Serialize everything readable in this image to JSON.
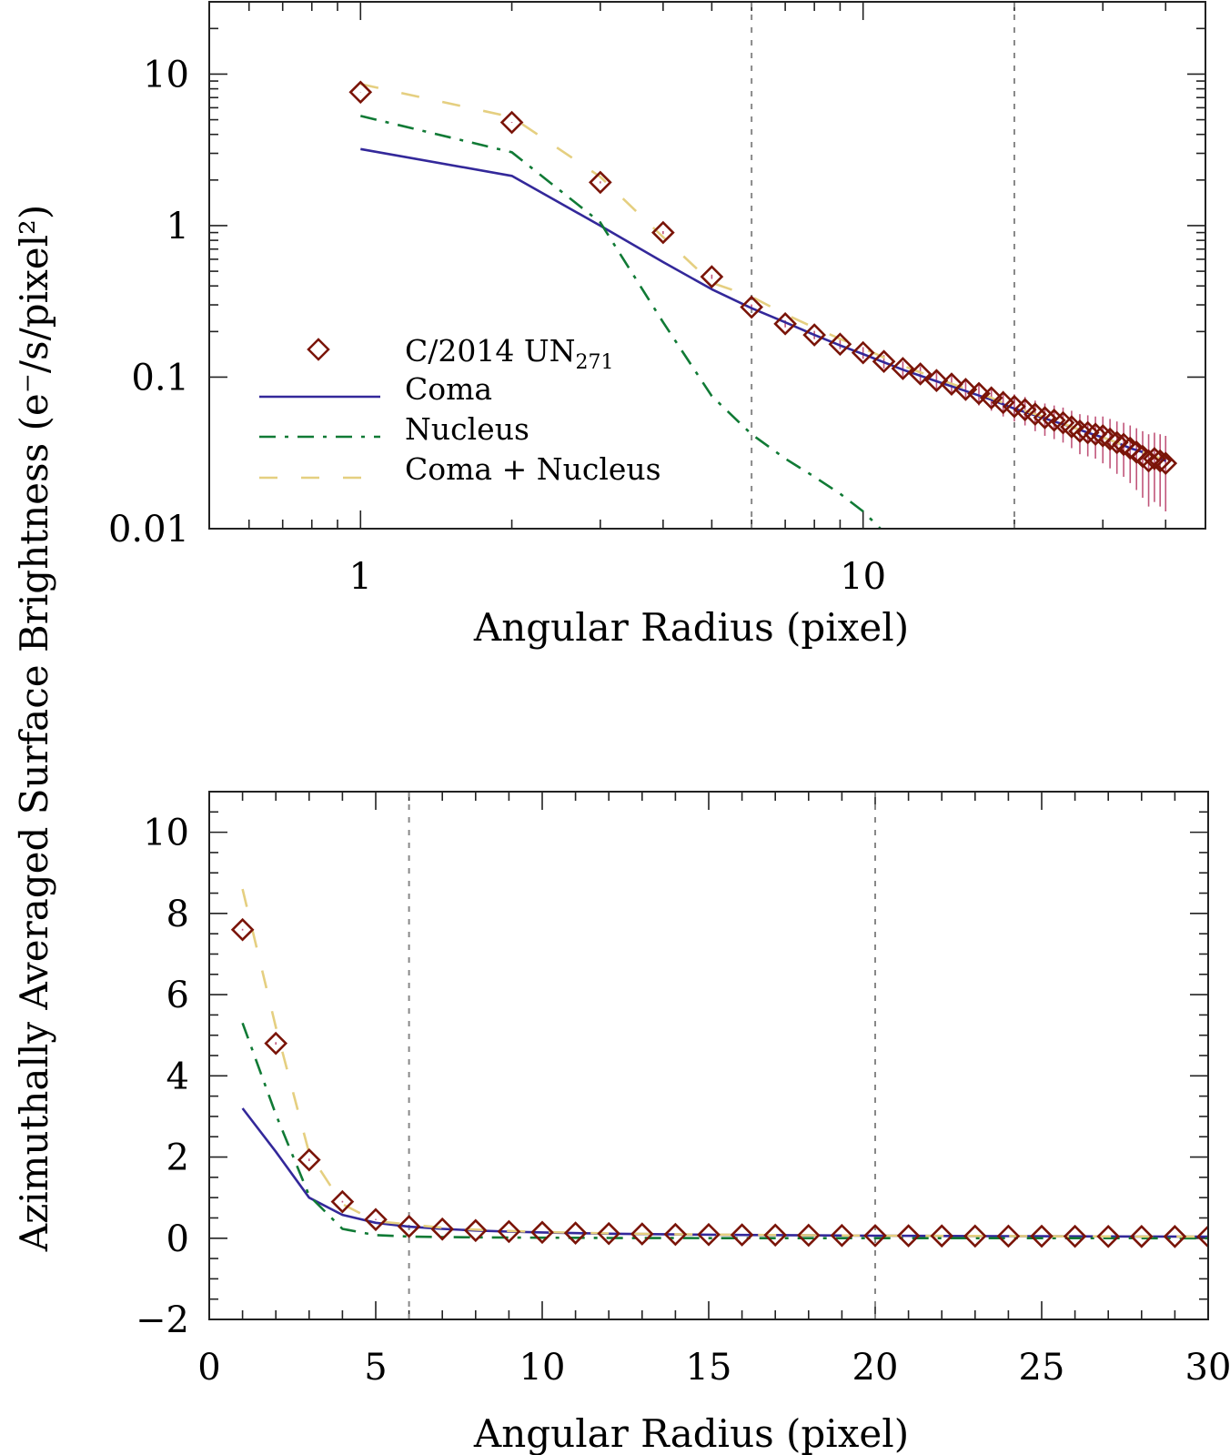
{
  "chart_data": [
    {
      "type": "line",
      "panel": "top",
      "title": "",
      "xlabel": "Angular Radius (pixel)",
      "ylabel": "Azimuthally Averaged Surface Brightness (e⁻/s/pixel²)",
      "xscale": "log",
      "yscale": "log",
      "xlim": [
        0.5,
        48
      ],
      "ylim": [
        0.01,
        30
      ],
      "xticks": [
        1,
        10
      ],
      "xtick_labels": [
        "1",
        "10"
      ],
      "yticks": [
        0.01,
        0.1,
        1,
        10
      ],
      "ytick_labels": [
        "0.01",
        "0.1",
        "1",
        "10"
      ],
      "vertical_lines": [
        6,
        20
      ],
      "legend": {
        "placement": "bottom-left",
        "entries": [
          {
            "label": "C/2014 UN",
            "subscript": "271",
            "style": "diamond",
            "color": "#7a1408"
          },
          {
            "label": "Coma",
            "style": "solid",
            "color": "#33289a"
          },
          {
            "label": "Nucleus",
            "style": "dash-dot",
            "color": "#107a35"
          },
          {
            "label": "Coma + Nucleus",
            "style": "dashed",
            "color": "#e5cf80"
          }
        ]
      }
    },
    {
      "type": "line",
      "panel": "bottom",
      "title": "",
      "xlabel": "Angular Radius (pixel)",
      "ylabel": "",
      "xscale": "linear",
      "yscale": "linear",
      "xlim": [
        0,
        30
      ],
      "ylim": [
        -2,
        11
      ],
      "xticks": [
        0,
        5,
        10,
        15,
        20,
        25,
        30
      ],
      "xtick_labels": [
        "0",
        "5",
        "10",
        "15",
        "20",
        "25",
        "30"
      ],
      "yticks": [
        -2,
        0,
        2,
        4,
        6,
        8,
        10
      ],
      "ytick_labels": [
        "−2",
        "0",
        "2",
        "4",
        "6",
        "8",
        "10"
      ],
      "vertical_lines": [
        6,
        20
      ]
    }
  ],
  "series": {
    "observed": {
      "name": "C/2014 UN271",
      "color": "#7a1408",
      "error_color": "#c0557a",
      "x": [
        1,
        2,
        3,
        4,
        5,
        6,
        7,
        8,
        9,
        10,
        11,
        12,
        13,
        14,
        15,
        16,
        17,
        18,
        19,
        20,
        21,
        22,
        23,
        24,
        25,
        26,
        27,
        28,
        29,
        30,
        31,
        32,
        33,
        34,
        35,
        36,
        37,
        38,
        39,
        40
      ],
      "y": [
        7.6,
        4.8,
        1.93,
        0.9,
        0.46,
        0.29,
        0.225,
        0.19,
        0.165,
        0.145,
        0.127,
        0.114,
        0.105,
        0.095,
        0.09,
        0.083,
        0.078,
        0.073,
        0.068,
        0.064,
        0.061,
        0.057,
        0.054,
        0.052,
        0.05,
        0.047,
        0.044,
        0.043,
        0.042,
        0.041,
        0.039,
        0.037,
        0.036,
        0.034,
        0.032,
        0.03,
        0.028,
        0.029,
        0.028,
        0.027
      ],
      "err": [
        0.02,
        0.03,
        0.03,
        0.02,
        0.015,
        0.012,
        0.012,
        0.012,
        0.012,
        0.013,
        0.013,
        0.013,
        0.013,
        0.013,
        0.013,
        0.013,
        0.013,
        0.013,
        0.013,
        0.013,
        0.013,
        0.013,
        0.013,
        0.013,
        0.013,
        0.013,
        0.013,
        0.013,
        0.013,
        0.014,
        0.014,
        0.014,
        0.014,
        0.014,
        0.014,
        0.014,
        0.014,
        0.014,
        0.014,
        0.014
      ]
    },
    "coma": {
      "name": "Coma",
      "color": "#33289a",
      "x": [
        1,
        2,
        3,
        4,
        5,
        6,
        7,
        8,
        9,
        10,
        12,
        14,
        16,
        18,
        20,
        22,
        24,
        26,
        28,
        30,
        32,
        34,
        36,
        38,
        40
      ],
      "y": [
        3.2,
        2.13,
        1.0,
        0.575,
        0.38,
        0.285,
        0.23,
        0.19,
        0.162,
        0.142,
        0.112,
        0.094,
        0.081,
        0.071,
        0.062,
        0.056,
        0.051,
        0.047,
        0.043,
        0.04,
        0.037,
        0.034,
        0.032,
        0.03,
        0.028
      ]
    },
    "nucleus": {
      "name": "Nucleus",
      "color": "#107a35",
      "x": [
        1,
        2,
        3,
        4,
        5,
        6,
        7,
        8,
        9,
        10,
        11,
        12,
        14,
        16,
        18,
        20,
        25,
        30
      ],
      "y": [
        5.3,
        3.05,
        1.05,
        0.23,
        0.075,
        0.042,
        0.029,
        0.022,
        0.017,
        0.013,
        0.0095,
        0.007,
        0.004,
        0.0025,
        0.0017,
        0.0012,
        0.0006,
        0.0003
      ]
    },
    "combined": {
      "name": "Coma + Nucleus",
      "color": "#e5cf80",
      "x": [
        1,
        2,
        3,
        4,
        5,
        6,
        7,
        8,
        9,
        10,
        12,
        14,
        16,
        18,
        20,
        22,
        24,
        26,
        28,
        30,
        32,
        34,
        36,
        38,
        40
      ],
      "y": [
        8.6,
        5.2,
        2.1,
        0.84,
        0.42,
        0.34,
        0.26,
        0.212,
        0.179,
        0.155,
        0.119,
        0.098,
        0.084,
        0.073,
        0.063,
        0.057,
        0.052,
        0.047,
        0.043,
        0.04,
        0.037,
        0.034,
        0.032,
        0.03,
        0.028
      ]
    }
  },
  "labels": {
    "y_title": "Azimuthally Averaged Surface Brightness (e⁻/s/pixel²)",
    "x_title_top": "Angular Radius (pixel)",
    "x_title_bottom": "Angular Radius (pixel)",
    "legend_observed": "C/2014 UN",
    "legend_observed_sub": "271",
    "legend_coma": "Coma",
    "legend_nucleus": "Nucleus",
    "legend_combined": "Coma + Nucleus"
  }
}
